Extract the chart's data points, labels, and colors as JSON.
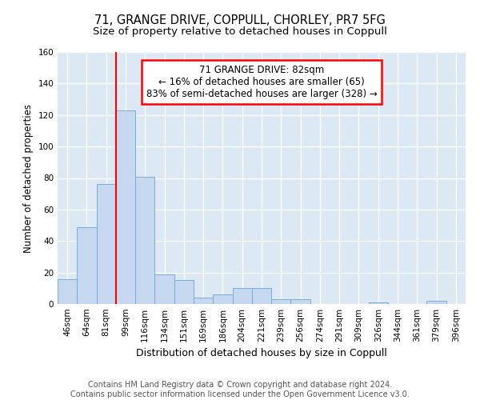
{
  "title1": "71, GRANGE DRIVE, COPPULL, CHORLEY, PR7 5FG",
  "title2": "Size of property relative to detached houses in Coppull",
  "xlabel": "Distribution of detached houses by size in Coppull",
  "ylabel": "Number of detached properties",
  "categories": [
    "46sqm",
    "64sqm",
    "81sqm",
    "99sqm",
    "116sqm",
    "134sqm",
    "151sqm",
    "169sqm",
    "186sqm",
    "204sqm",
    "221sqm",
    "239sqm",
    "256sqm",
    "274sqm",
    "291sqm",
    "309sqm",
    "326sqm",
    "344sqm",
    "361sqm",
    "379sqm",
    "396sqm"
  ],
  "values": [
    16,
    49,
    76,
    123,
    81,
    19,
    15,
    4,
    6,
    10,
    10,
    3,
    3,
    0,
    0,
    0,
    1,
    0,
    0,
    2,
    0
  ],
  "bar_color": "#c5d8f0",
  "bar_edge_color": "#7aadd4",
  "annotation_text_lines": [
    "71 GRANGE DRIVE: 82sqm",
    "← 16% of detached houses are smaller (65)",
    "83% of semi-detached houses are larger (328) →"
  ],
  "box_facecolor": "white",
  "box_edgecolor": "red",
  "vline_color": "red",
  "vline_x": 2.5,
  "ylim": [
    0,
    160
  ],
  "yticks": [
    0,
    20,
    40,
    60,
    80,
    100,
    120,
    140,
    160
  ],
  "background_color": "#dce9f5",
  "footer_text": "Contains HM Land Registry data © Crown copyright and database right 2024.\nContains public sector information licensed under the Open Government Licence v3.0.",
  "title1_fontsize": 10.5,
  "title2_fontsize": 9.5,
  "xlabel_fontsize": 9,
  "ylabel_fontsize": 8.5,
  "tick_fontsize": 7.5,
  "footer_fontsize": 7,
  "annotation_fontsize": 8.5
}
